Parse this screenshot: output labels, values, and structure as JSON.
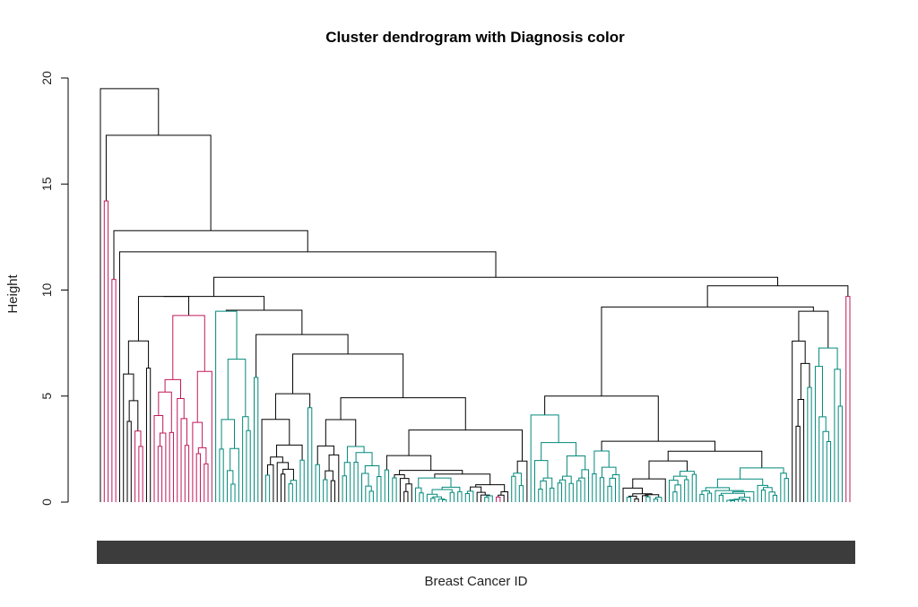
{
  "chart_data": {
    "type": "dendrogram",
    "title": "Cluster dendrogram with Diagnosis color",
    "xlabel": "Breast Cancer ID",
    "ylabel": "Height",
    "ylim": [
      0,
      20
    ],
    "yticks": [
      0,
      5,
      10,
      15,
      20
    ],
    "leaf_count": 200,
    "grid": false,
    "legend": "none",
    "colors": {
      "malignant": "#c2185b",
      "benign": "#00897b",
      "mixed": "#000000"
    },
    "top_merges": [
      {
        "height": 19.5
      },
      {
        "height": 17.3
      },
      {
        "height": 12.8
      },
      {
        "height": 11.8
      },
      {
        "height": 10.6
      },
      {
        "height": 10.2
      },
      {
        "height": 9.7
      },
      {
        "height": 9.2
      }
    ]
  }
}
